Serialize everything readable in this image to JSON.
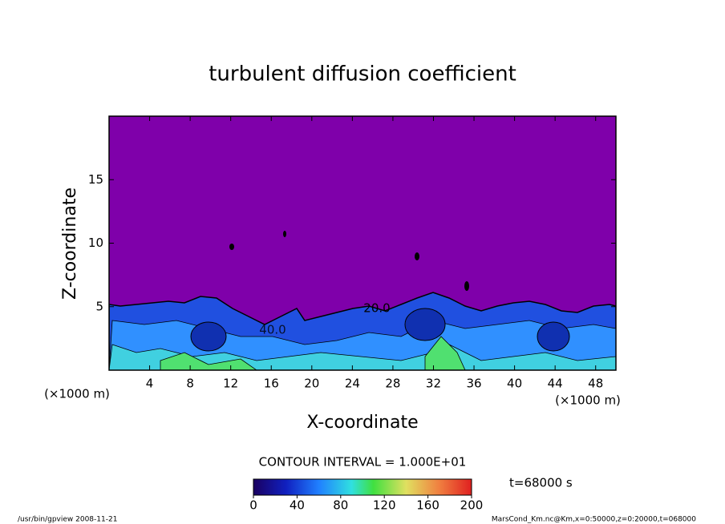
{
  "chart_data": {
    "type": "contour",
    "title": "turbulent diffusion coefficient",
    "x_label": "X-coordinate",
    "y_label": "Z-coordinate",
    "x_unit": "(×1000 m)",
    "y_unit": "(×1000 m)",
    "xlim": [
      0,
      50
    ],
    "xticks": [
      4,
      8,
      12,
      16,
      20,
      24,
      28,
      32,
      36,
      40,
      44,
      48
    ],
    "ylim": [
      0,
      20
    ],
    "yticks": [
      5,
      10,
      15
    ],
    "background_color": "#7f00aa",
    "contour_labels": [
      "40.0",
      "20.0"
    ],
    "contour_interval": "CONTOUR INTERVAL = 1.000E+01",
    "colorbar": {
      "lim": [
        0,
        200
      ],
      "ticks": [
        0,
        40,
        80,
        120,
        160,
        200
      ]
    },
    "time": "t=68000 s",
    "footer_left": "/usr/bin/gpview   2008-11-21",
    "footer_right": "MarsCond_Km.nc@Km,x=0:50000,z=0:20000,t=068000"
  }
}
